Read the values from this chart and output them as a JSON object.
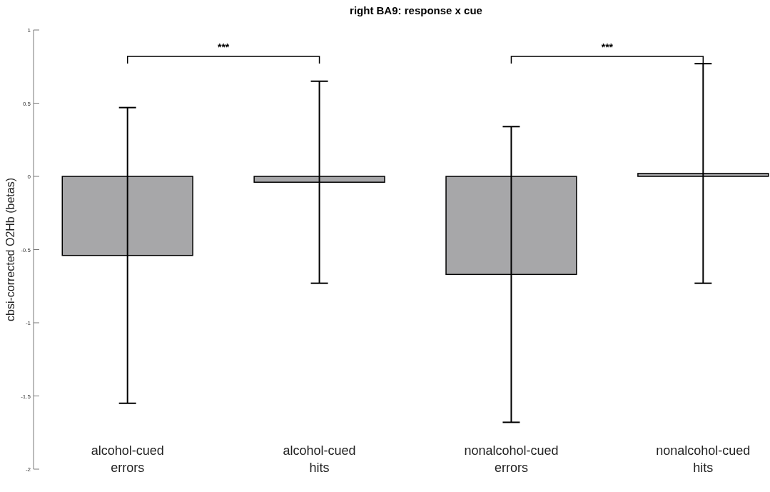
{
  "chart_data": {
    "type": "bar",
    "title": "right BA9: response x cue",
    "ylabel": "cbsi-corrected O2Hb (betas)",
    "categories": [
      "alcohol-cued errors",
      "alcohol-cued hits",
      "nonalcohol-cued errors",
      "nonalcohol-cued hits"
    ],
    "values": [
      -0.54,
      -0.04,
      -0.67,
      0.02
    ],
    "errors": [
      1.01,
      0.69,
      1.01,
      0.75
    ],
    "color": "#a7a7a9",
    "ylim": [
      -2,
      1
    ],
    "yticks": [
      -2,
      -1.5,
      -1,
      -0.5,
      0,
      0.5,
      1
    ],
    "grid": false,
    "annotations": [
      "***",
      "***"
    ]
  }
}
